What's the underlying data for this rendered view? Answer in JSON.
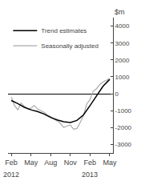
{
  "chart_data": {
    "type": "line",
    "ylabel": "$m",
    "series": [
      {
        "name": "Seasonally adjusted",
        "color": "#aaaaaa",
        "x": [
          0,
          0.5,
          1,
          1.5,
          2,
          2.5,
          3,
          3.5,
          4,
          4.5,
          5,
          5.5,
          6,
          6.5,
          7,
          7.5,
          8,
          8.5,
          9,
          9.5,
          10,
          10.5,
          11,
          11.5,
          12,
          12.5,
          13,
          13.5,
          14,
          14.5,
          15
        ],
        "values": [
          -200,
          -700,
          -950,
          -550,
          -750,
          -900,
          -850,
          -700,
          -900,
          -1000,
          -1100,
          -1250,
          -1350,
          -1500,
          -1600,
          -1750,
          -2000,
          -1900,
          -1850,
          -2100,
          -2050,
          -1700,
          -1300,
          -600,
          -350,
          150,
          300,
          550,
          700,
          800,
          900
        ]
      },
      {
        "name": "Trend estimates",
        "color": "#000000",
        "x": [
          0,
          1,
          2,
          3,
          4,
          5,
          6,
          7,
          8,
          9,
          10,
          11,
          12,
          13,
          14,
          15
        ],
        "values": [
          -400,
          -580,
          -800,
          -950,
          -1050,
          -1200,
          -1400,
          -1550,
          -1650,
          -1700,
          -1580,
          -1250,
          -700,
          -100,
          450,
          850
        ]
      }
    ],
    "xlim": [
      -0.5,
      15.5
    ],
    "xticks": [
      {
        "value": 0,
        "label": "Feb"
      },
      {
        "value": 3,
        "label": "May"
      },
      {
        "value": 6,
        "label": "Aug"
      },
      {
        "value": 9,
        "label": "Nov"
      },
      {
        "value": 12,
        "label": "Feb"
      },
      {
        "value": 15,
        "label": "May"
      }
    ],
    "ylim": [
      -3500,
      4500
    ],
    "yticks": [
      -3000,
      -2000,
      -1000,
      0,
      1000,
      2000,
      3000,
      4000
    ],
    "annotations": [
      {
        "text": "2012",
        "x": 0
      },
      {
        "text": "2013",
        "x": 12
      }
    ],
    "legend": "upper left",
    "grid": false
  }
}
